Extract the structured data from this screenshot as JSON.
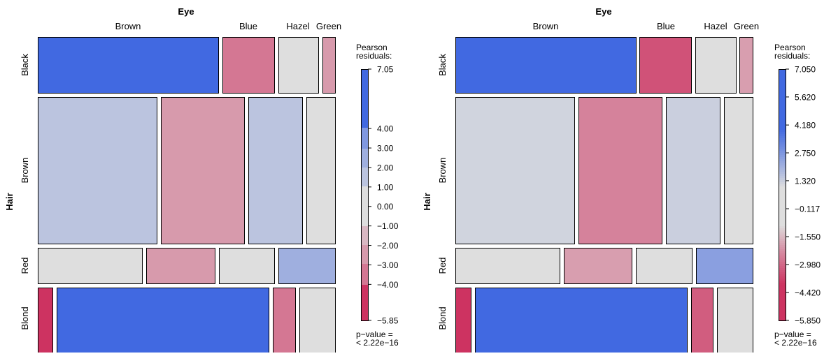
{
  "chart_data": [
    {
      "type": "mosaic",
      "row_variable": "Hair",
      "column_variable": "Eye",
      "rows": [
        "Black",
        "Brown",
        "Red",
        "Blond"
      ],
      "columns": [
        "Brown",
        "Blue",
        "Hazel",
        "Green"
      ],
      "residuals": [
        [
          7.0,
          -3.4,
          -0.5,
          -2.0
        ],
        [
          1.2,
          -2.5,
          1.3,
          0.5
        ],
        [
          0.0,
          -2.0,
          0.4,
          2.5
        ],
        [
          -5.85,
          7.05,
          -3.2,
          0.5
        ]
      ],
      "legend": {
        "title_lines": [
          "Pearson",
          "residuals:"
        ],
        "max": 7.05,
        "min": -5.85,
        "ticks": [
          "7.05",
          "4.00",
          "3.00",
          "2.00",
          "1.00",
          "0.00",
          "−1.00",
          "−2.00",
          "−3.00",
          "−4.00",
          "−5.85"
        ],
        "shading": "interval"
      },
      "pvalue_lines": [
        "p−value =",
        "< 2.22e−16"
      ]
    },
    {
      "type": "mosaic",
      "row_variable": "Hair",
      "column_variable": "Eye",
      "rows": [
        "Black",
        "Brown",
        "Red",
        "Blond"
      ],
      "columns": [
        "Brown",
        "Blue",
        "Hazel",
        "Green"
      ],
      "residuals": [
        [
          7.0,
          -3.4,
          -0.5,
          -2.0
        ],
        [
          1.2,
          -2.5,
          1.3,
          0.5
        ],
        [
          0.0,
          -2.0,
          0.4,
          2.5
        ],
        [
          -5.85,
          7.05,
          -3.2,
          0.5
        ]
      ],
      "legend": {
        "title_lines": [
          "Pearson",
          "residuals:"
        ],
        "max": 7.05,
        "min": -5.85,
        "ticks": [
          "7.050",
          "5.620",
          "4.180",
          "2.750",
          "1.320",
          "−0.117",
          "−1.550",
          "−2.980",
          "−4.420",
          "−5.850"
        ],
        "shading": "continuous"
      },
      "pvalue_lines": [
        "p−value =",
        "< 2.22e−16"
      ]
    }
  ],
  "colors": {
    "positive": "#4169e1",
    "negative": "#cd3361",
    "neutral": "#dedede",
    "border": "#000000"
  }
}
